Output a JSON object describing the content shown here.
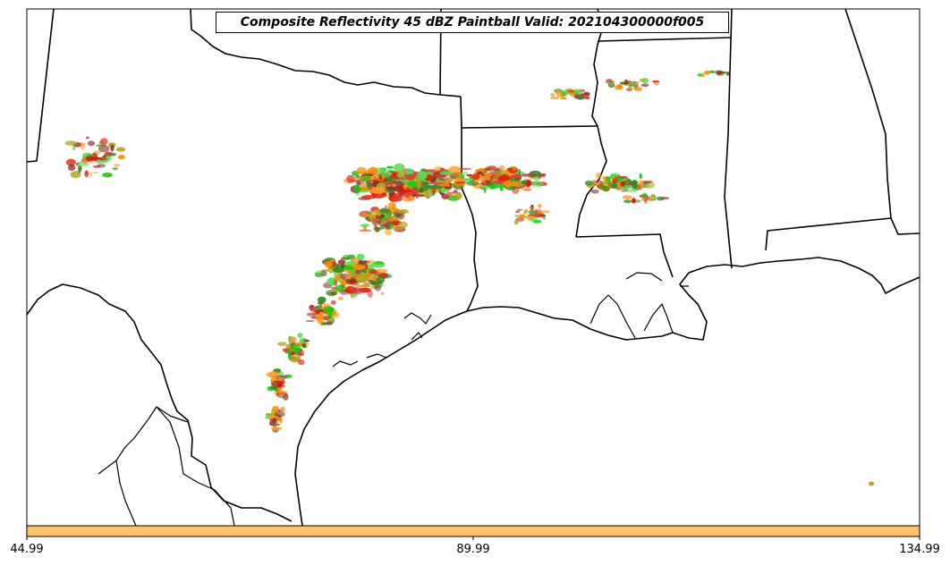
{
  "map": {
    "title": "Composite Reflectivity 45 dBZ Paintball Valid: 202104300000f005",
    "colorbar": {
      "color": "#ffc266",
      "tick_labels": [
        "44.99",
        "89.99",
        "134.99"
      ]
    },
    "colors": {
      "border": "#000000",
      "background": "#ffffff",
      "member_colors": [
        "#ff8c00",
        "#dd1100",
        "#11cc11",
        "#2e8b22",
        "#8b2a2a",
        "#b5a520",
        "#ff9d2a",
        "#e83a3a",
        "#58e058",
        "#a04848"
      ]
    }
  }
}
